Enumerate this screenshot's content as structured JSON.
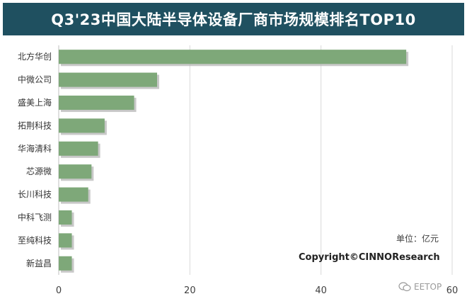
{
  "header": {
    "title": "Q3'23中国大陆半导体设备厂商市场规模排名TOP10"
  },
  "chart_data": {
    "type": "bar",
    "orientation": "horizontal",
    "categories": [
      "北方华创",
      "中微公司",
      "盛美上海",
      "拓荆科技",
      "华海清科",
      "芯源微",
      "长川科技",
      "中科飞测",
      "至纯科技",
      "新益昌"
    ],
    "values": [
      53,
      15,
      11.5,
      7,
      6,
      5,
      4.5,
      2,
      2,
      2
    ],
    "xlim": [
      0,
      60
    ],
    "xticks": [
      0,
      20,
      40,
      60
    ],
    "grid": true,
    "bar_color": "#7ea879",
    "title": "Q3'23中国大陆半导体设备厂商市场规模排名TOP10"
  },
  "notes": {
    "unit": "单位：亿元",
    "copyright": "Copyright©CINNOResearch"
  },
  "watermark": {
    "text": "EETOP"
  },
  "colors": {
    "title_bg": "#1f5060",
    "bar": "#7ea879",
    "grid": "#d9d9d9"
  }
}
